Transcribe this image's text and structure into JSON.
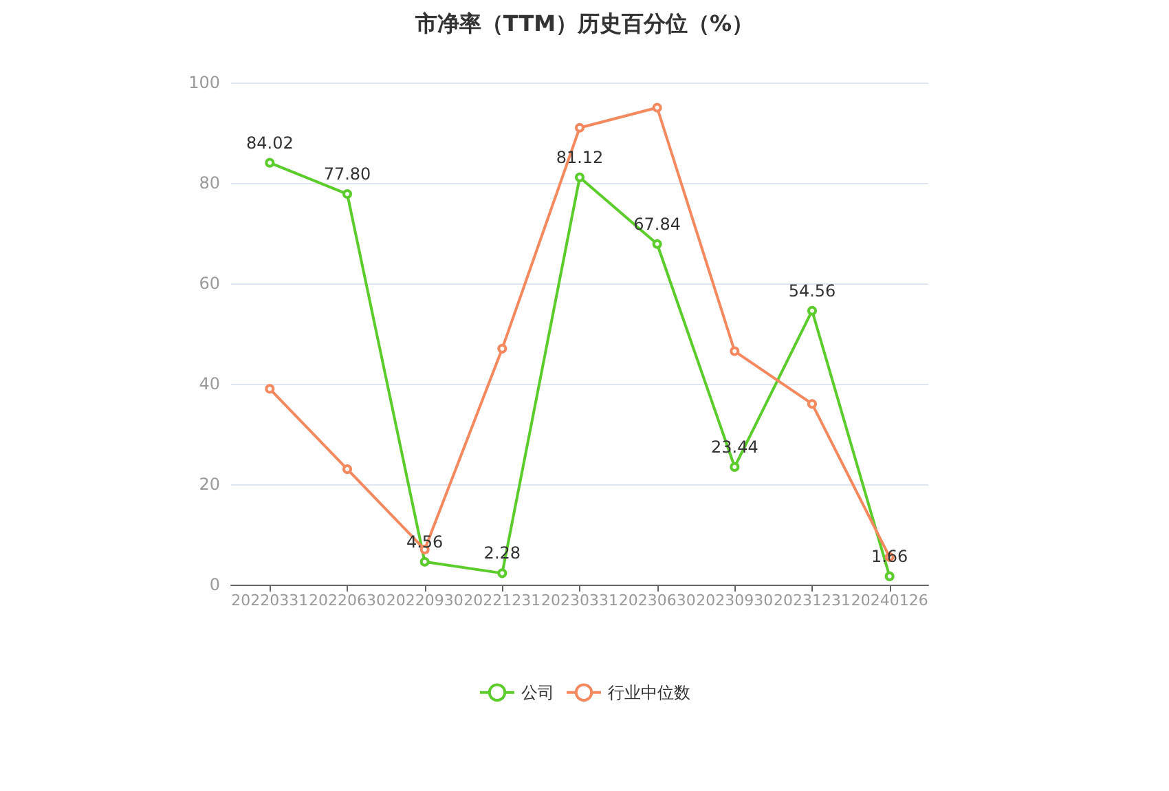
{
  "chart_data": {
    "type": "line",
    "title": "市净率（TTM）历史百分位（%）",
    "categories": [
      "20220331",
      "20220630",
      "20220930",
      "20221231",
      "20230331",
      "20230630",
      "20230930",
      "20231231",
      "20240126"
    ],
    "series": [
      {
        "name": "公司",
        "color": "#5ccc2c",
        "values": [
          84.02,
          77.8,
          4.56,
          2.28,
          81.12,
          67.84,
          23.44,
          54.56,
          1.66
        ],
        "value_labels": [
          "84.02",
          "77.80",
          "4.56",
          "2.28",
          "81.12",
          "67.84",
          "23.44",
          "54.56",
          "1.66"
        ]
      },
      {
        "name": "行业中位数",
        "color": "#f4895f",
        "values": [
          39,
          23,
          7,
          47,
          91,
          95,
          46.5,
          36,
          5.5
        ]
      }
    ],
    "ylim": [
      0,
      100
    ],
    "yticks": [
      0,
      20,
      40,
      60,
      80,
      100
    ],
    "grid": "y",
    "legend": "bottom",
    "marker": "circle",
    "line_style": "solid"
  }
}
